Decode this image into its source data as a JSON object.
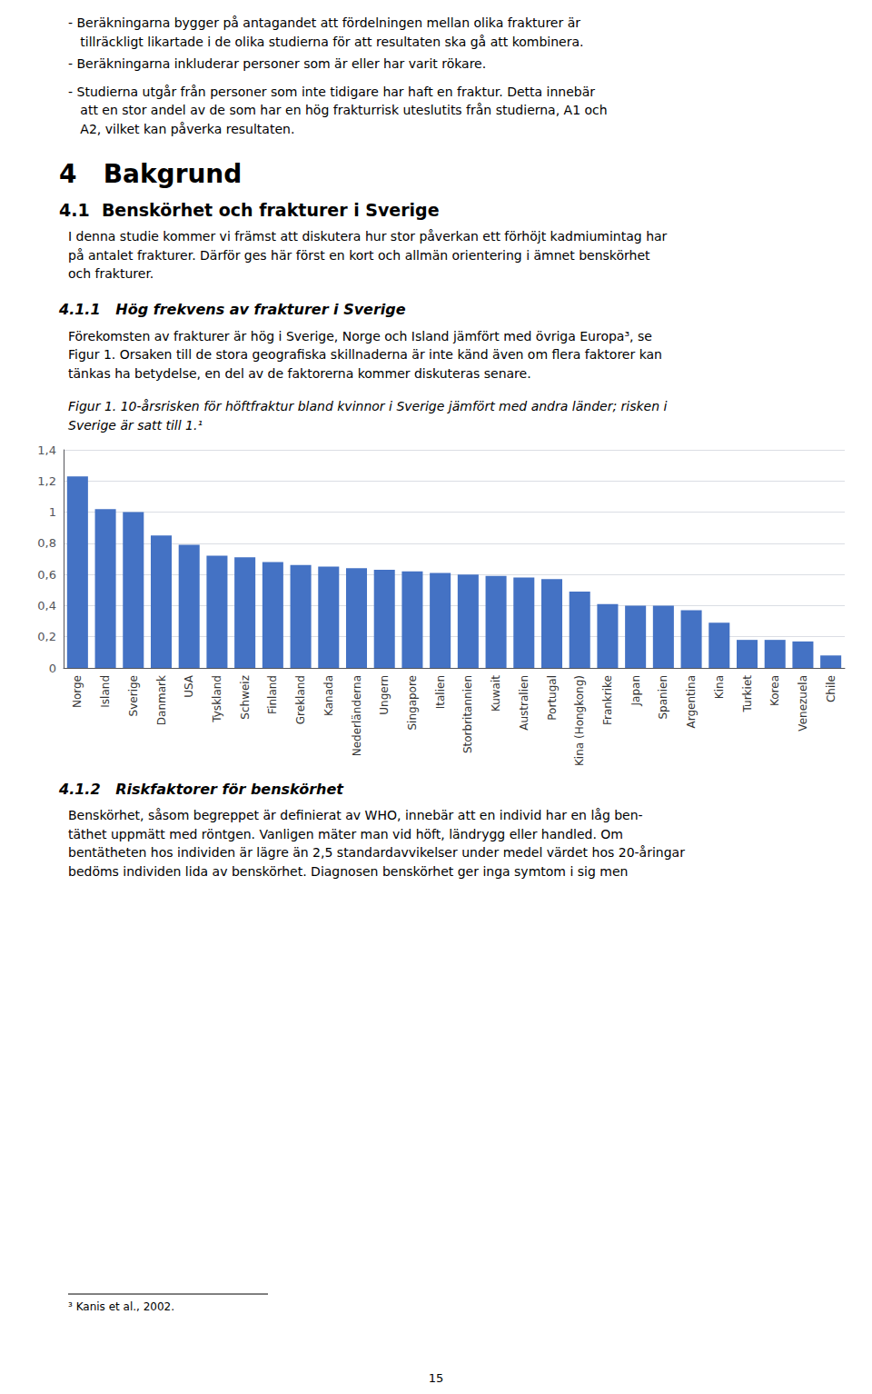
{
  "chart_data": {
    "type": "bar",
    "annotations": [
      "- Beräkningarna bygger på antagandet att fördelningen mellan olika frakturer är",
      "   tillräckligt likartade i de olika studierna för att resultaten ska gå att kombinera.",
      "- Beräkningarna inkluderar personer som är eller har varit rökare.",
      "- Studierna utgår från personer som inte tidigare har haft en fraktur. Detta innebär",
      "   att en stor andel av de som har en hög frakturrisk uteslutits från studierna, A1 och",
      "   A2, vilket kan påverka resultaten.",
      "4   Bakgrund",
      "4.1  Benskörhet och frakturer i Sverige",
      "I denna studie kommer vi främst att diskutera hur stor påverkan ett förhöjt kadmiumintag har",
      "på antalet frakturer. Därför ges här först en kort och allmän orientering i ämnet benskörhet",
      "och frakturer.",
      "4.1.1   Hög frekvens av frakturer i Sverige",
      "Förekomsten av frakturer är hög i Sverige, Norge och Island jämfört med övriga Europa³, se",
      "Figur 1. Orsaken till de stora geografiska skillnaderna är inte känd även om flera faktorer kan",
      "tänkas ha betydelse, en del av de faktorerna kommer diskuteras senare.",
      "Figur 1. 10-årsrisken för höftfraktur bland kvinnor i Sverige jämfört med andra länder; risken i",
      "Sverige är satt till 1.¹",
      "4.1.2   Riskfaktorer för benskörhet",
      "Benskörhet, såsom begreppet är definierat av WHO, innebär att en individ har en låg ben-",
      "täthet uppmätt med röntgen. Vanligen mäter man vid höft, ländrygg eller handled. Om",
      "bentätheten hos individen är lägre än 2,5 standardavvikelser under medel värdet hos 20-åringar",
      "bedöms individen lida av benskörhet. Diagnosen benskörhet ger inga symtom i sig men",
      "³ Kanis et al., 2002.",
      "15"
    ],
    "categories": [
      "Norge",
      "Island",
      "Sverige",
      "Danmark",
      "USA",
      "Tyskland",
      "Schweiz",
      "Finland",
      "Grekland",
      "Kanada",
      "Nederländerna",
      "Ungern",
      "Singapore",
      "Italien",
      "Storbritannien",
      "Kuwait",
      "Australien",
      "Portugal",
      "Kina (Hongkong)",
      "Frankrike",
      "Japan",
      "Spanien",
      "Argentina",
      "Kina",
      "Turkiet",
      "Korea",
      "Venezuela",
      "Chile"
    ],
    "values": [
      1.23,
      1.02,
      1.0,
      0.85,
      0.79,
      0.72,
      0.71,
      0.68,
      0.66,
      0.65,
      0.64,
      0.63,
      0.62,
      0.61,
      0.6,
      0.59,
      0.58,
      0.57,
      0.49,
      0.41,
      0.4,
      0.4,
      0.37,
      0.29,
      0.18,
      0.18,
      0.17,
      0.08
    ],
    "color": "#4472C4",
    "ylim": [
      0,
      1.4
    ],
    "yticks": [
      0,
      {
        "value": 0.2,
        "label": "0,2"
      },
      {
        "value": 0.4,
        "label": "0,4"
      },
      {
        "value": 0.6,
        "label": "0,6"
      },
      {
        "value": 0.8,
        "label": "0,8"
      },
      1,
      {
        "value": 1.2,
        "label": "1,2"
      },
      {
        "value": 1.4,
        "label": "1,4"
      }
    ],
    "grid": true
  }
}
